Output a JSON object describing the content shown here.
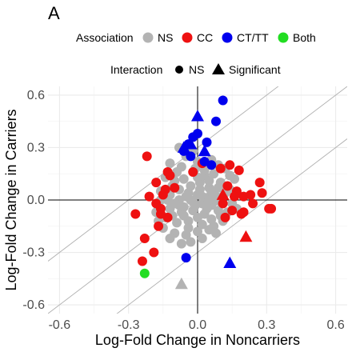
{
  "chart_data": {
    "type": "scatter",
    "panel_label": "A",
    "xlabel": "Log-Fold Change in Noncarriers",
    "ylabel": "Log-Fold Change in Carriers",
    "xlim": [
      -0.65,
      0.65
    ],
    "ylim": [
      -0.65,
      0.65
    ],
    "x_ticks": [
      -0.6,
      -0.3,
      0.0,
      0.3,
      0.6
    ],
    "x_tick_labels": [
      "-0.6",
      "-0.3",
      "0.0",
      "0.3",
      "0.6"
    ],
    "y_ticks": [
      -0.6,
      -0.3,
      0.0,
      0.3,
      0.6
    ],
    "y_tick_labels": [
      "-0.6",
      "-0.3",
      "0.0",
      "0.3",
      "0.6"
    ],
    "grid": true,
    "reference_lines": {
      "zero_axes": true,
      "diagonals": [
        {
          "slope": 1,
          "intercept": 0.3
        },
        {
          "slope": 1,
          "intercept": 0.0
        },
        {
          "slope": 1,
          "intercept": -0.3
        }
      ]
    },
    "legend_placement": "top",
    "legend": {
      "association": {
        "title": "Association",
        "entries": [
          {
            "label": "NS",
            "color": "#b3b3b3"
          },
          {
            "label": "CC",
            "color": "#ee1111"
          },
          {
            "label": "CT/TT",
            "color": "#0000ee"
          },
          {
            "label": "Both",
            "color": "#22dd22"
          }
        ]
      },
      "interaction": {
        "title": "Interaction",
        "entries": [
          {
            "label": "NS",
            "shape": "circle"
          },
          {
            "label": "Significant",
            "shape": "triangle"
          }
        ]
      }
    },
    "series": [
      {
        "name": "NS",
        "color": "#b3b3b3",
        "points": [
          [
            -0.08,
            0.0
          ],
          [
            -0.05,
            0.02
          ],
          [
            -0.02,
            -0.01
          ],
          [
            0.0,
            0.03
          ],
          [
            0.02,
            -0.02
          ],
          [
            0.04,
            0.01
          ],
          [
            0.06,
            -0.03
          ],
          [
            0.08,
            0.02
          ],
          [
            -0.1,
            -0.02
          ],
          [
            -0.12,
            0.03
          ],
          [
            0.1,
            -0.01
          ],
          [
            0.12,
            0.04
          ],
          [
            -0.03,
            0.08
          ],
          [
            0.01,
            0.1
          ],
          [
            0.05,
            0.07
          ],
          [
            -0.06,
            0.12
          ],
          [
            0.03,
            0.14
          ],
          [
            -0.01,
            0.18
          ],
          [
            0.07,
            0.15
          ],
          [
            -0.09,
            0.16
          ],
          [
            0.1,
            0.1
          ],
          [
            -0.11,
            0.08
          ],
          [
            0.0,
            0.22
          ],
          [
            -0.05,
            0.25
          ],
          [
            0.04,
            0.2
          ],
          [
            -0.08,
            0.3
          ],
          [
            -0.02,
            -0.06
          ],
          [
            0.03,
            -0.08
          ],
          [
            -0.07,
            -0.07
          ],
          [
            0.09,
            -0.06
          ],
          [
            -0.12,
            -0.05
          ],
          [
            0.13,
            -0.07
          ],
          [
            -0.04,
            -0.12
          ],
          [
            0.02,
            -0.14
          ],
          [
            0.06,
            -0.11
          ],
          [
            -0.09,
            -0.13
          ],
          [
            0.11,
            -0.12
          ],
          [
            -0.14,
            -0.1
          ],
          [
            0.0,
            -0.18
          ],
          [
            -0.05,
            -0.2
          ],
          [
            0.05,
            -0.17
          ],
          [
            -0.1,
            -0.19
          ],
          [
            0.08,
            -0.19
          ],
          [
            -0.15,
            -0.16
          ],
          [
            -0.03,
            -0.24
          ],
          [
            0.02,
            -0.22
          ],
          [
            -0.07,
            -0.25
          ],
          [
            -0.12,
            -0.22
          ],
          [
            -0.17,
            -0.12
          ],
          [
            -0.16,
            0.05
          ],
          [
            0.14,
            0.06
          ],
          [
            0.15,
            -0.02
          ],
          [
            0.16,
            0.12
          ],
          [
            -0.14,
            0.13
          ],
          [
            0.09,
            0.2
          ],
          [
            -0.12,
            0.21
          ],
          [
            0.12,
            0.18
          ],
          [
            -0.04,
            0.04
          ],
          [
            0.06,
            0.05
          ],
          [
            -0.01,
            -0.03
          ],
          [
            0.01,
            0.06
          ],
          [
            -0.06,
            -0.04
          ],
          [
            0.04,
            -0.05
          ],
          [
            0.09,
            0.07
          ],
          [
            -0.08,
            0.06
          ],
          [
            0.02,
            0.02
          ],
          [
            -0.03,
            0.0
          ],
          [
            0.07,
            -0.01
          ],
          [
            0.11,
            0.02
          ],
          [
            -0.13,
            0.0
          ],
          [
            -0.1,
            0.11
          ],
          [
            0.0,
            0.13
          ],
          [
            0.05,
            0.11
          ],
          [
            -0.07,
            0.19
          ],
          [
            0.03,
            0.17
          ],
          [
            -0.02,
            0.28
          ],
          [
            0.06,
            0.23
          ],
          [
            -0.04,
            -0.16
          ],
          [
            0.07,
            -0.15
          ],
          [
            -0.11,
            -0.09
          ],
          [
            0.0,
            -0.1
          ],
          [
            0.1,
            -0.09
          ],
          [
            -0.06,
            -0.09
          ],
          [
            -0.08,
            -0.03
          ],
          [
            0.05,
            0.0
          ],
          [
            -0.18,
            -0.07
          ],
          [
            0.17,
            -0.05
          ],
          [
            0.14,
            0.14
          ],
          [
            -0.16,
            0.0
          ]
        ]
      },
      {
        "name": "CC",
        "color": "#ee1111",
        "points": [
          [
            -0.22,
            0.25
          ],
          [
            -0.21,
            0.02
          ],
          [
            -0.27,
            -0.08
          ],
          [
            -0.18,
            0.1
          ],
          [
            -0.17,
            -0.15
          ],
          [
            -0.23,
            -0.22
          ],
          [
            -0.19,
            -0.3
          ],
          [
            -0.24,
            -0.35
          ],
          [
            -0.15,
            0.03
          ],
          [
            -0.16,
            -0.05
          ],
          [
            -0.14,
            0.06
          ],
          [
            -0.13,
            -0.1
          ],
          [
            -0.16,
            -0.08
          ],
          [
            -0.13,
            0.16
          ],
          [
            0.14,
            0.2
          ],
          [
            0.18,
            0.17
          ],
          [
            0.17,
            0.05
          ],
          [
            0.2,
            0.02
          ],
          [
            0.24,
            -0.02
          ],
          [
            0.23,
            0.03
          ],
          [
            0.27,
            0.1
          ],
          [
            0.28,
            0.04
          ],
          [
            0.31,
            -0.05
          ],
          [
            0.32,
            -0.05
          ],
          [
            0.19,
            -0.08
          ],
          [
            0.12,
            -0.1
          ],
          [
            0.11,
            -0.02
          ],
          [
            0.16,
            0.02
          ],
          [
            0.13,
            0.08
          ],
          [
            0.1,
            0.18
          ],
          [
            0.02,
            0.21
          ],
          [
            -0.02,
            0.16
          ],
          [
            -0.12,
            0.14
          ],
          [
            -0.1,
            0.07
          ],
          [
            -0.18,
            -0.02
          ],
          [
            0.15,
            -0.06
          ],
          [
            0.2,
            -0.07
          ]
        ]
      },
      {
        "name": "CT/TT",
        "color": "#0000ee",
        "points": [
          [
            0.11,
            0.57
          ],
          [
            0.08,
            0.45
          ],
          [
            -0.04,
            0.32
          ],
          [
            -0.03,
            0.25
          ],
          [
            0.0,
            0.38
          ],
          [
            -0.02,
            0.36
          ],
          [
            0.04,
            0.33
          ],
          [
            0.06,
            0.2
          ],
          [
            0.03,
            0.22
          ],
          [
            -0.06,
            0.28
          ],
          [
            -0.05,
            -0.33
          ]
        ]
      },
      {
        "name": "Both",
        "color": "#22dd22",
        "points": [
          [
            -0.23,
            -0.42
          ]
        ]
      }
    ],
    "significant_interactions": [
      {
        "x": 0.0,
        "y": 0.48,
        "association": "CT/TT"
      },
      {
        "x": 0.03,
        "y": 0.28,
        "association": "CT/TT"
      },
      {
        "x": -0.03,
        "y": 0.32,
        "association": "CT/TT"
      },
      {
        "x": -0.06,
        "y": 0.3,
        "association": "CT/TT"
      },
      {
        "x": 0.14,
        "y": -0.36,
        "association": "CT/TT"
      },
      {
        "x": 0.21,
        "y": -0.21,
        "association": "CC"
      },
      {
        "x": 0.11,
        "y": 0.03,
        "association": "CC"
      },
      {
        "x": -0.07,
        "y": -0.48,
        "association": "NS"
      }
    ]
  }
}
